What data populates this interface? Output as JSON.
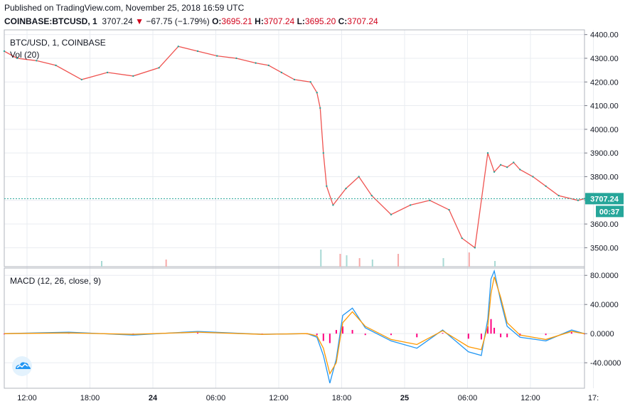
{
  "header": {
    "published": "Published on TradingView.com, November 25, 2018 16:59 UTC",
    "symbol": "COINBASE:BTCUSD, 1",
    "last": "3707.24",
    "change_arrow": "▼",
    "change": "−67.75 (−1.79%)",
    "o_label": "O:",
    "o_value": "3695.21",
    "h_label": "H:",
    "h_value": "3707.24",
    "l_label": "L:",
    "l_value": "3695.20",
    "c_label": "C:",
    "c_value": "3707.24"
  },
  "pane_labels": {
    "price": "BTC/USD, 1, COINBASE",
    "volume": "Vol (20)",
    "macd": "MACD (12, 26, close, 9)"
  },
  "badges": {
    "price": "3707.24",
    "countdown": "00:37"
  },
  "colors": {
    "up": "#26a69a",
    "down": "#ef5350",
    "accent": "#26a69a",
    "macd_line": "#2196f3",
    "signal_line": "#ff9800",
    "histogram": "#ff0080",
    "grid": "#e9ecf1",
    "axis": "#787b86"
  },
  "icons": {
    "logo": "tradingview-cloud-icon"
  },
  "chart_data": [
    {
      "type": "line",
      "name": "price",
      "x_ticks": [
        "12:00",
        "18:00",
        "24",
        "06:00",
        "12:00",
        "18:00",
        "25",
        "06:00",
        "12:00",
        "17:"
      ],
      "y_ticks": [
        "4400.00",
        "4300.00",
        "4200.00",
        "4100.00",
        "4000.00",
        "3900.00",
        "3800.00",
        "3700.00",
        "3600.00",
        "3500.00"
      ],
      "ylim": [
        3420,
        4420
      ],
      "last_price": 3707.24,
      "x": [
        0,
        2,
        5,
        8,
        12,
        16,
        20,
        24,
        27,
        30,
        33,
        36,
        39,
        41,
        43,
        45,
        47.5,
        48.5,
        49,
        49.5,
        50,
        51,
        53,
        55,
        57,
        60,
        63,
        66,
        69,
        71,
        73,
        75,
        76,
        77,
        78,
        79,
        80,
        82,
        84,
        86,
        89,
        90
      ],
      "y": [
        4330,
        4300,
        4290,
        4270,
        4210,
        4240,
        4225,
        4260,
        4350,
        4330,
        4310,
        4300,
        4280,
        4270,
        4240,
        4210,
        4200,
        4155,
        4090,
        3900,
        3760,
        3680,
        3750,
        3800,
        3720,
        3640,
        3680,
        3700,
        3660,
        3540,
        3500,
        3900,
        3820,
        3850,
        3840,
        3860,
        3830,
        3800,
        3760,
        3720,
        3700,
        3707
      ]
    },
    {
      "type": "bar",
      "name": "volume",
      "x": [
        15,
        25,
        49,
        52,
        53,
        55,
        57,
        61,
        68,
        72,
        76
      ],
      "values": [
        0.2,
        0.25,
        0.6,
        0.45,
        0.4,
        0.3,
        0.25,
        0.45,
        0.3,
        0.5,
        0.2
      ]
    },
    {
      "type": "line",
      "name": "macd",
      "y_ticks": [
        "80.0000",
        "40.0000",
        "0.0000",
        "-40.0000"
      ],
      "ylim": [
        -75,
        90
      ],
      "x": [
        0,
        10,
        20,
        30,
        40,
        47,
        48.5,
        49.5,
        50.5,
        51.5,
        52.5,
        54,
        56,
        60,
        64,
        68,
        72,
        74,
        75,
        75.5,
        76,
        77,
        78,
        80,
        84,
        88,
        90
      ],
      "macd": [
        0,
        2,
        -2,
        3,
        -1,
        0,
        -5,
        -30,
        -68,
        -35,
        25,
        35,
        8,
        -10,
        -20,
        5,
        -25,
        -30,
        20,
        75,
        86,
        45,
        10,
        -5,
        -10,
        5,
        0
      ],
      "signal": [
        0,
        1,
        -1,
        2,
        -1,
        0,
        -3,
        -20,
        -55,
        -40,
        15,
        30,
        10,
        -8,
        -15,
        4,
        -18,
        -22,
        10,
        55,
        78,
        50,
        15,
        -2,
        -8,
        3,
        0
      ]
    }
  ]
}
